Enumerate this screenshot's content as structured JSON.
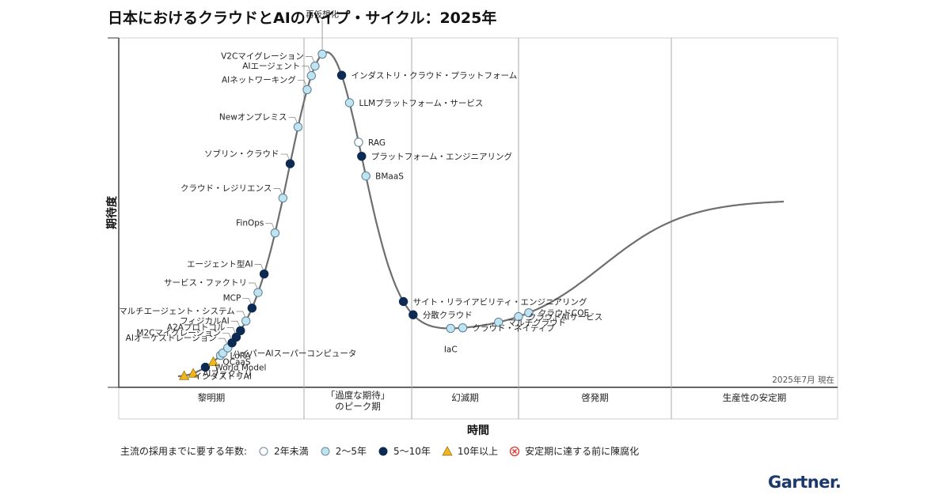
{
  "title": "日本におけるクラウドとAIのハイプ・サイクル：2025年",
  "colors": {
    "under2": "#ffffff",
    "y2to5": "#bfe3f0",
    "y5to10": "#0d2b52",
    "over10": "#f2b51e",
    "obsolete": "#d9372f",
    "curve": "#6e6e6e"
  },
  "chart_data": {
    "type": "scatter",
    "title": "日本におけるクラウドとAIのハイプ・サイクル：2025年",
    "xlabel": "時間",
    "ylabel": "期待度",
    "date_note": "2025年7月 現在",
    "phases": [
      "黎明期",
      "「過度な期待」のピーク期",
      "幻滅期",
      "啓発期",
      "生産性の安定期"
    ],
    "phase_lines": [
      [
        "黎明期"
      ],
      [
        "「過度な期待」",
        "のピーク期"
      ],
      [
        "幻滅期"
      ],
      [
        "啓発期"
      ],
      [
        "生産性の安定期"
      ]
    ],
    "legend": {
      "title": "主流の採用までに要する年数:",
      "items": [
        {
          "key": "under2",
          "label": "2年未満"
        },
        {
          "key": "y2to5",
          "label": "2〜5年"
        },
        {
          "key": "y5to10",
          "label": "5〜10年"
        },
        {
          "key": "over10",
          "label": "10年以上"
        },
        {
          "key": "obsolete",
          "label": "安定期に達する前に陳腐化"
        }
      ]
    },
    "points": [
      {
        "name": "インダストリAI",
        "t": 0.01,
        "years": "over10",
        "side": "right"
      },
      {
        "name": "AIファクトリ",
        "t": 0.025,
        "years": "over10",
        "side": "right"
      },
      {
        "name": "World Model",
        "t": 0.045,
        "years": "y5to10",
        "side": "right"
      },
      {
        "name": "QCaaS",
        "t": 0.058,
        "years": "over10",
        "side": "right"
      },
      {
        "name": "LoRA",
        "t": 0.07,
        "years": "y2to5",
        "side": "right"
      },
      {
        "name": "ハイパーAIスーパーコンピュータ",
        "t": 0.074,
        "years": "y2to5",
        "side": "right"
      },
      {
        "name": "AIオーケストレーション",
        "t": 0.082,
        "years": "y2to5",
        "side": "left"
      },
      {
        "name": "M2Cマイグレーション",
        "t": 0.089,
        "years": "y5to10",
        "side": "left"
      },
      {
        "name": "A2Aプロトコル",
        "t": 0.096,
        "years": "y5to10",
        "side": "left"
      },
      {
        "name": "フィジカルAI",
        "t": 0.103,
        "years": "y5to10",
        "side": "left"
      },
      {
        "name": "マルチエージェント・システム",
        "t": 0.112,
        "years": "y2to5",
        "side": "left"
      },
      {
        "name": "MCP",
        "t": 0.122,
        "years": "y5to10",
        "side": "left"
      },
      {
        "name": "サービス・ファクトリ",
        "t": 0.132,
        "years": "y2to5",
        "side": "left"
      },
      {
        "name": "エージェント型AI",
        "t": 0.142,
        "years": "y5to10",
        "side": "left"
      },
      {
        "name": "FinOps",
        "t": 0.16,
        "years": "y2to5",
        "side": "left"
      },
      {
        "name": "クラウド・レジリエンス",
        "t": 0.173,
        "years": "y2to5",
        "side": "left"
      },
      {
        "name": "ソブリン・クラウド",
        "t": 0.185,
        "years": "y5to10",
        "side": "left"
      },
      {
        "name": "Newオンプレミス",
        "t": 0.198,
        "years": "y2to5",
        "side": "left"
      },
      {
        "name": "AIネットワーキング",
        "t": 0.213,
        "years": "y2to5",
        "side": "left"
      },
      {
        "name": "AIエージェント",
        "t": 0.22,
        "years": "y2to5",
        "side": "left"
      },
      {
        "name": "V2Cマイグレーション",
        "t": 0.226,
        "years": "y2to5",
        "side": "left"
      },
      {
        "name": "再仮想化",
        "t": 0.238,
        "years": "y2to5",
        "side": "top"
      },
      {
        "name": "インダストリ・クラウド・プラットフォーム",
        "t": 0.27,
        "years": "y5to10",
        "side": "right"
      },
      {
        "name": "LLMプラットフォーム・サービス",
        "t": 0.283,
        "years": "y2to5",
        "side": "right"
      },
      {
        "name": "RAG",
        "t": 0.298,
        "years": "under2",
        "side": "right"
      },
      {
        "name": "プラットフォーム・エンジニアリング",
        "t": 0.303,
        "years": "y5to10",
        "side": "right"
      },
      {
        "name": "BMaaS",
        "t": 0.31,
        "years": "y2to5",
        "side": "right"
      },
      {
        "name": "サイト・リライアビリティ・エンジニアリング",
        "t": 0.372,
        "years": "y5to10",
        "side": "right"
      },
      {
        "name": "分散クラウド",
        "t": 0.388,
        "years": "y5to10",
        "side": "right"
      },
      {
        "name": "IaC",
        "t": 0.45,
        "years": "y2to5",
        "side": "bottom"
      },
      {
        "name": "クラウド・ネイティブ",
        "t": 0.47,
        "years": "y2to5",
        "side": "right"
      },
      {
        "name": "マルチクラウド",
        "t": 0.529,
        "years": "y2to5",
        "side": "right"
      },
      {
        "name": "クラウドAIサービス",
        "t": 0.562,
        "years": "y2to5",
        "side": "right"
      },
      {
        "name": "クラウドCOE",
        "t": 0.579,
        "years": "y2to5",
        "side": "right"
      }
    ]
  },
  "logo": "Gartner."
}
